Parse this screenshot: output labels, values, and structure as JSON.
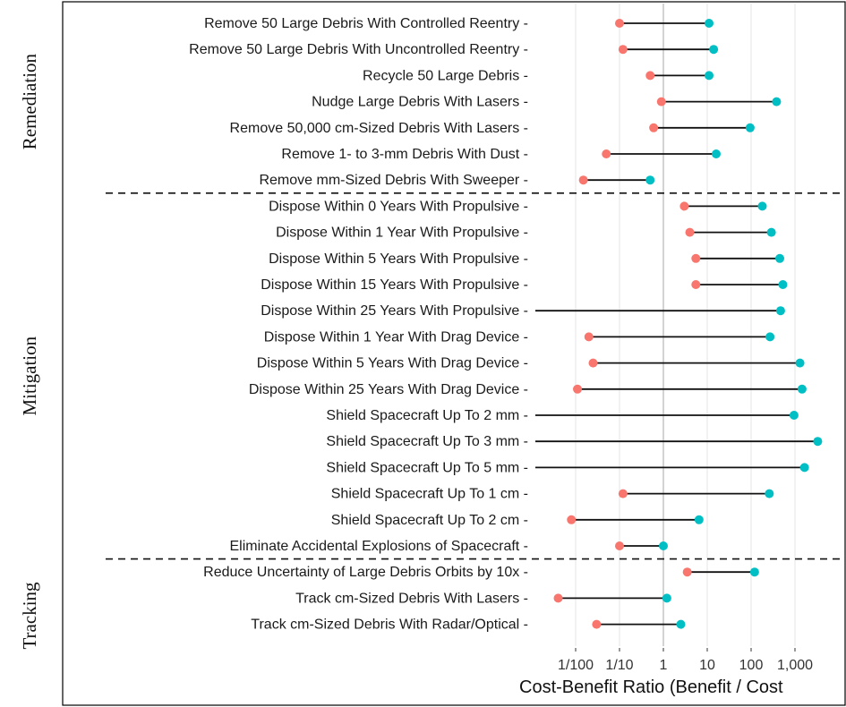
{
  "chart_data": {
    "type": "dumbbell",
    "xlabel": "Cost-Benefit Ratio (Benefit / Cost",
    "x_scale": "log10",
    "xlim": [
      0.002,
      8000
    ],
    "grid": "vertical gridlines at major ticks; reference line at 1",
    "x_ticks": [
      {
        "value": 0.01,
        "label": "1/100"
      },
      {
        "value": 0.1,
        "label": "1/10"
      },
      {
        "value": 1,
        "label": "1"
      },
      {
        "value": 10,
        "label": "10"
      },
      {
        "value": 100,
        "label": "100"
      },
      {
        "value": 1000,
        "label": "1,000"
      }
    ],
    "colors": {
      "low": "#f8766d",
      "high": "#00bfc4",
      "segment": "#111111",
      "reference_line": "#c8c8c8",
      "grid": "#e6e6e6"
    },
    "groups": [
      {
        "name": "Remediation",
        "rows": 7
      },
      {
        "name": "Mitigation",
        "rows": 14
      },
      {
        "name": "Tracking",
        "rows": 3
      }
    ],
    "rows": [
      {
        "label": "Remove 50 Large Debris With Controlled Reentry",
        "group": "Remediation",
        "low": 0.1,
        "high": 11
      },
      {
        "label": "Remove 50 Large Debris With Uncontrolled Reentry",
        "group": "Remediation",
        "low": 0.12,
        "high": 14
      },
      {
        "label": "Recycle 50 Large Debris",
        "group": "Remediation",
        "low": 0.5,
        "high": 11
      },
      {
        "label": "Nudge Large Debris With Lasers",
        "group": "Remediation",
        "low": 0.9,
        "high": 380
      },
      {
        "label": "Remove 50,000 cm-Sized Debris With Lasers",
        "group": "Remediation",
        "low": 0.6,
        "high": 95
      },
      {
        "label": "Remove 1- to 3-mm Debris With Dust",
        "group": "Remediation",
        "low": 0.05,
        "high": 16
      },
      {
        "label": "Remove mm-Sized Debris With Sweeper",
        "group": "Remediation",
        "low": 0.015,
        "high": 0.5
      },
      {
        "label": "Dispose Within 0 Years With Propulsive",
        "group": "Mitigation",
        "low": 3,
        "high": 180
      },
      {
        "label": "Dispose Within 1 Year With Propulsive",
        "group": "Mitigation",
        "low": 4,
        "high": 290
      },
      {
        "label": "Dispose Within 5 Years With Propulsive",
        "group": "Mitigation",
        "low": 5.5,
        "high": 450
      },
      {
        "label": "Dispose Within 15 Years With Propulsive",
        "group": "Mitigation",
        "low": 5.5,
        "high": 530
      },
      {
        "label": "Dispose Within 25 Years With Propulsive",
        "group": "Mitigation",
        "low": null,
        "high": 470
      },
      {
        "label": "Dispose Within 1 Year With Drag Device",
        "group": "Mitigation",
        "low": 0.02,
        "high": 270
      },
      {
        "label": "Dispose Within 5 Years With Drag Device",
        "group": "Mitigation",
        "low": 0.025,
        "high": 1300
      },
      {
        "label": "Dispose Within 25 Years With Drag Device",
        "group": "Mitigation",
        "low": 0.011,
        "high": 1450
      },
      {
        "label": "Shield Spacecraft Up To 2 mm",
        "group": "Mitigation",
        "low": null,
        "high": 950
      },
      {
        "label": "Shield Spacecraft Up To 3 mm",
        "group": "Mitigation",
        "low": null,
        "high": 3300
      },
      {
        "label": "Shield Spacecraft Up To 5 mm",
        "group": "Mitigation",
        "low": null,
        "high": 1650
      },
      {
        "label": "Shield Spacecraft Up To 1 cm",
        "group": "Mitigation",
        "low": 0.12,
        "high": 260
      },
      {
        "label": "Shield Spacecraft Up To 2 cm",
        "group": "Mitigation",
        "low": 0.008,
        "high": 6.5
      },
      {
        "label": "Eliminate Accidental Explosions of Spacecraft",
        "group": "Mitigation",
        "low": 0.1,
        "high": 1
      },
      {
        "label": "Reduce Uncertainty of Large Debris Orbits by 10x",
        "group": "Tracking",
        "low": 3.5,
        "high": 120
      },
      {
        "label": "Track cm-Sized Debris With Lasers",
        "group": "Tracking",
        "low": 0.004,
        "high": 1.2
      },
      {
        "label": "Track cm-Sized Debris With Radar/Optical",
        "group": "Tracking",
        "low": 0.03,
        "high": 2.5
      }
    ]
  }
}
